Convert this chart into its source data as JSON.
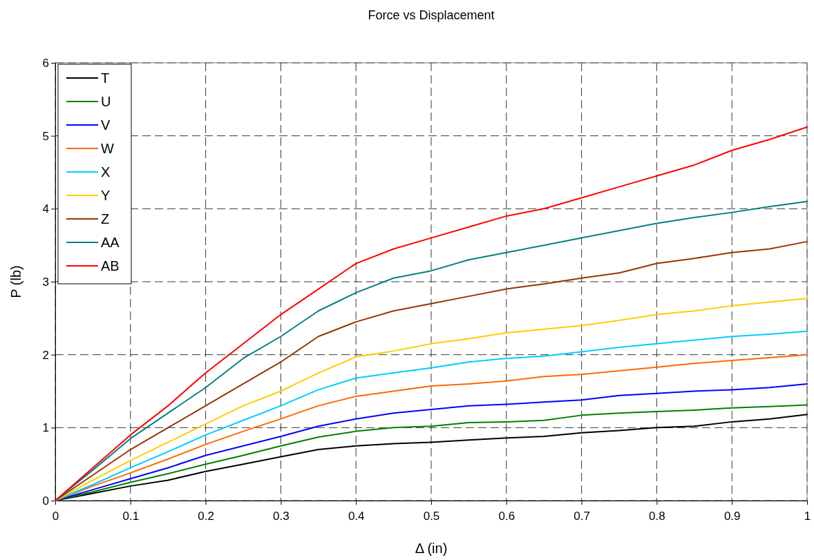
{
  "chart_data": {
    "type": "line",
    "title": "Force vs Displacement",
    "xlabel": "Δ (in)",
    "ylabel": "P (lb)",
    "x": [
      0,
      0.05,
      0.1,
      0.15,
      0.2,
      0.25,
      0.3,
      0.35,
      0.4,
      0.45,
      0.5,
      0.55,
      0.6,
      0.65,
      0.7,
      0.75,
      0.8,
      0.85,
      0.9,
      0.95,
      1
    ],
    "xlim": [
      0,
      1
    ],
    "xticks": [
      0,
      0.1,
      0.2,
      0.3,
      0.4,
      0.5,
      0.6,
      0.7,
      0.8,
      0.9,
      1
    ],
    "ylim": [
      0,
      6
    ],
    "yticks": [
      0,
      1,
      2,
      3,
      4,
      5,
      6
    ],
    "grid": true,
    "legend": "top left",
    "marker": "none",
    "line_style": "solid",
    "series": [
      {
        "name": "T",
        "color": "#000000",
        "values": [
          0,
          0.1,
          0.2,
          0.28,
          0.4,
          0.5,
          0.6,
          0.7,
          0.75,
          0.78,
          0.8,
          0.83,
          0.86,
          0.88,
          0.93,
          0.96,
          1.0,
          1.02,
          1.08,
          1.12,
          1.18
        ]
      },
      {
        "name": "U",
        "color": "#008000",
        "values": [
          0,
          0.12,
          0.25,
          0.37,
          0.5,
          0.62,
          0.75,
          0.87,
          0.95,
          1.0,
          1.02,
          1.07,
          1.08,
          1.1,
          1.17,
          1.2,
          1.22,
          1.24,
          1.27,
          1.29,
          1.31
        ]
      },
      {
        "name": "V",
        "color": "#0000ff",
        "values": [
          0,
          0.15,
          0.3,
          0.45,
          0.62,
          0.75,
          0.88,
          1.02,
          1.12,
          1.2,
          1.25,
          1.3,
          1.32,
          1.35,
          1.38,
          1.44,
          1.47,
          1.5,
          1.52,
          1.55,
          1.6
        ]
      },
      {
        "name": "W",
        "color": "#ff6600",
        "values": [
          0,
          0.2,
          0.38,
          0.57,
          0.77,
          0.95,
          1.12,
          1.3,
          1.43,
          1.5,
          1.57,
          1.6,
          1.64,
          1.7,
          1.73,
          1.78,
          1.83,
          1.88,
          1.92,
          1.96,
          2.0
        ]
      },
      {
        "name": "X",
        "color": "#00ccff",
        "values": [
          0,
          0.22,
          0.45,
          0.67,
          0.9,
          1.1,
          1.3,
          1.52,
          1.68,
          1.75,
          1.82,
          1.9,
          1.95,
          1.98,
          2.04,
          2.1,
          2.15,
          2.2,
          2.25,
          2.28,
          2.32
        ]
      },
      {
        "name": "Y",
        "color": "#ffcc00",
        "values": [
          0,
          0.28,
          0.55,
          0.8,
          1.05,
          1.3,
          1.5,
          1.75,
          1.97,
          2.05,
          2.15,
          2.22,
          2.3,
          2.35,
          2.4,
          2.47,
          2.55,
          2.6,
          2.67,
          2.72,
          2.77
        ]
      },
      {
        "name": "Z",
        "color": "#993300",
        "values": [
          0,
          0.35,
          0.7,
          1.0,
          1.3,
          1.6,
          1.9,
          2.25,
          2.45,
          2.6,
          2.7,
          2.8,
          2.9,
          2.97,
          3.05,
          3.12,
          3.25,
          3.32,
          3.4,
          3.45,
          3.55
        ]
      },
      {
        "name": "AA",
        "color": "#008080",
        "values": [
          0,
          0.42,
          0.85,
          1.2,
          1.55,
          1.95,
          2.25,
          2.6,
          2.85,
          3.05,
          3.15,
          3.3,
          3.4,
          3.5,
          3.6,
          3.7,
          3.8,
          3.88,
          3.95,
          4.03,
          4.1
        ]
      },
      {
        "name": "AB",
        "color": "#ff0000",
        "values": [
          0,
          0.45,
          0.9,
          1.3,
          1.75,
          2.15,
          2.55,
          2.9,
          3.25,
          3.45,
          3.6,
          3.75,
          3.9,
          4.0,
          4.15,
          4.3,
          4.45,
          4.6,
          4.8,
          4.95,
          5.12
        ]
      }
    ]
  }
}
